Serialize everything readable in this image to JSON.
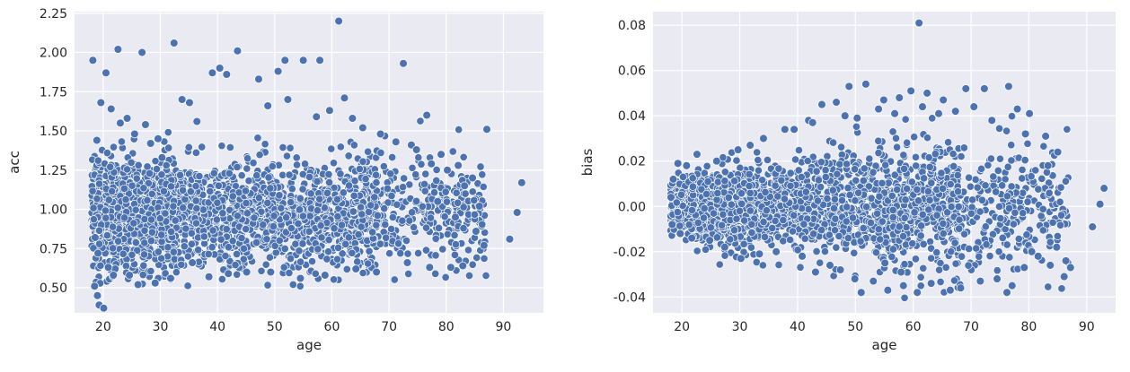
{
  "chart_data": [
    {
      "type": "scatter",
      "xlabel": "age",
      "ylabel": "acc",
      "xlim": [
        15,
        97
      ],
      "ylim": [
        0.34,
        2.26
      ],
      "xticks": [
        20,
        30,
        40,
        50,
        60,
        70,
        80,
        90
      ],
      "yticks": [
        0.5,
        0.75,
        1.0,
        1.25,
        1.5,
        1.75,
        2.0,
        2.25
      ],
      "ytick_labels": [
        "0.50",
        "0.75",
        "1.00",
        "1.25",
        "1.50",
        "1.75",
        "2.00",
        "2.25"
      ],
      "xtick_labels": [
        "20",
        "30",
        "40",
        "50",
        "60",
        "70",
        "80",
        "90"
      ],
      "grid": true,
      "point_color": "#4c72b0",
      "background_color": "#eaeaf2",
      "x": [
        18.2,
        18.5,
        19.3,
        20.1,
        19.0,
        18.9,
        22.6,
        26.8,
        32.4,
        43.5,
        61.2,
        55.0,
        51.8,
        72.5,
        57.9,
        39.1,
        40.4,
        41.6,
        47.2,
        50.6,
        52.3,
        62.2,
        76.6,
        87.1,
        93.2,
        92.4,
        91.1,
        85.8,
        84.6,
        83.2,
        82.1,
        80.2,
        79.1,
        77.4,
        20.5,
        19.6,
        21.4,
        23.0,
        24.2,
        25.5,
        27.4,
        29.6,
        30.3,
        33.8,
        36.4,
        35.1,
        28.3,
        22.1,
        18.6,
        19.1,
        20.9,
        21.8,
        26.1,
        48.8,
        57.3,
        59.6,
        63.6,
        65.4,
        68.5,
        71.2,
        73.9,
        74.8,
        78.5,
        80.8,
        81.6,
        85.2,
        86.6,
        82.9,
        77.1,
        73.2,
        67.8,
        64.2,
        58.8,
        54.5,
        49.3,
        45.1,
        41.9,
        38.5,
        35.6,
        31.8,
        29.1,
        24.6
      ],
      "y": [
        1.95,
        0.51,
        0.39,
        0.37,
        0.45,
        1.44,
        2.02,
        2.0,
        2.06,
        2.01,
        2.2,
        1.95,
        1.95,
        1.93,
        1.95,
        1.87,
        1.9,
        1.86,
        1.83,
        1.88,
        1.7,
        1.71,
        1.6,
        1.51,
        1.17,
        0.98,
        0.81,
        1.02,
        1.2,
        1.15,
        1.28,
        1.25,
        1.35,
        1.29,
        1.87,
        1.68,
        1.64,
        1.55,
        1.58,
        1.48,
        1.54,
        1.45,
        1.33,
        1.7,
        1.56,
        1.68,
        1.42,
        0.62,
        0.82,
        0.72,
        0.63,
        0.58,
        0.52,
        1.66,
        1.59,
        1.63,
        1.58,
        1.52,
        1.48,
        1.43,
        1.41,
        1.38,
        1.05,
        0.63,
        0.95,
        0.86,
        0.77,
        0.64,
        0.63,
        0.66,
        0.6,
        0.62,
        0.58,
        0.56,
        0.6,
        0.6,
        0.59,
        0.57,
        0.66,
        0.56,
        0.53,
        0.58
      ]
    },
    {
      "type": "scatter",
      "xlabel": "age",
      "ylabel": "bias",
      "xlim": [
        15,
        95
      ],
      "ylim": [
        -0.047,
        0.086
      ],
      "xticks": [
        20,
        30,
        40,
        50,
        60,
        70,
        80,
        90
      ],
      "yticks": [
        -0.04,
        -0.02,
        0.0,
        0.02,
        0.04,
        0.06,
        0.08
      ],
      "ytick_labels": [
        "-0.04",
        "-0.02",
        "0.00",
        "0.02",
        "0.04",
        "0.06",
        "0.08"
      ],
      "xtick_labels": [
        "20",
        "30",
        "40",
        "50",
        "60",
        "70",
        "80",
        "90"
      ],
      "grid": true,
      "point_color": "#4c72b0",
      "background_color": "#eaeaf2",
      "x": [
        61.0,
        48.9,
        51.8,
        59.6,
        76.5,
        62.4,
        69.1,
        72.3,
        54.9,
        57.6,
        65.2,
        44.2,
        46.7,
        41.9,
        39.4,
        42.6,
        37.8,
        34.1,
        31.8,
        29.7,
        26.0,
        22.6,
        19.3,
        18.5,
        18.1,
        18.3,
        19.7,
        20.8,
        93.0,
        92.3,
        91.0,
        87.2,
        86.4,
        86.1,
        84.8,
        83.7,
        81.6,
        80.5,
        79.2,
        77.1,
        76.2,
        74.5,
        71.6,
        68.2,
        66.4,
        63.1,
        60.7,
        58.3,
        55.6,
        53.1,
        51.0,
        49.9,
        47.4,
        45.6,
        43.1,
        40.8,
        36.3,
        33.4,
        30.2,
        27.4,
        24.8,
        21.7,
        85.0,
        82.9,
        78.0,
        73.6,
        70.5,
        67.3,
        64.4,
        61.6,
        56.8,
        54.0,
        50.3,
        48.2,
        55.1,
        57.9,
        83.3,
        80.1,
        79.4
      ],
      "y": [
        0.081,
        0.053,
        0.054,
        0.051,
        0.053,
        0.05,
        0.052,
        0.052,
        0.047,
        0.048,
        0.047,
        0.045,
        0.046,
        0.038,
        0.034,
        0.037,
        0.034,
        0.03,
        0.027,
        0.025,
        0.02,
        0.023,
        0.019,
        0.012,
        0.004,
        -0.008,
        -0.012,
        0.018,
        0.008,
        0.001,
        -0.009,
        -0.027,
        -0.024,
        -0.031,
        -0.018,
        -0.026,
        -0.022,
        -0.02,
        -0.027,
        -0.035,
        -0.038,
        -0.032,
        -0.033,
        -0.036,
        -0.037,
        -0.034,
        -0.038,
        -0.035,
        -0.037,
        -0.033,
        -0.038,
        -0.032,
        -0.028,
        -0.026,
        -0.029,
        -0.022,
        -0.02,
        -0.021,
        -0.023,
        -0.018,
        -0.015,
        -0.014,
        0.024,
        0.031,
        0.043,
        0.038,
        0.044,
        0.042,
        0.041,
        0.044,
        0.041,
        0.043,
        0.039,
        0.04,
        -0.025,
        -0.029,
        0.018,
        0.041,
        0.032
      ]
    }
  ]
}
